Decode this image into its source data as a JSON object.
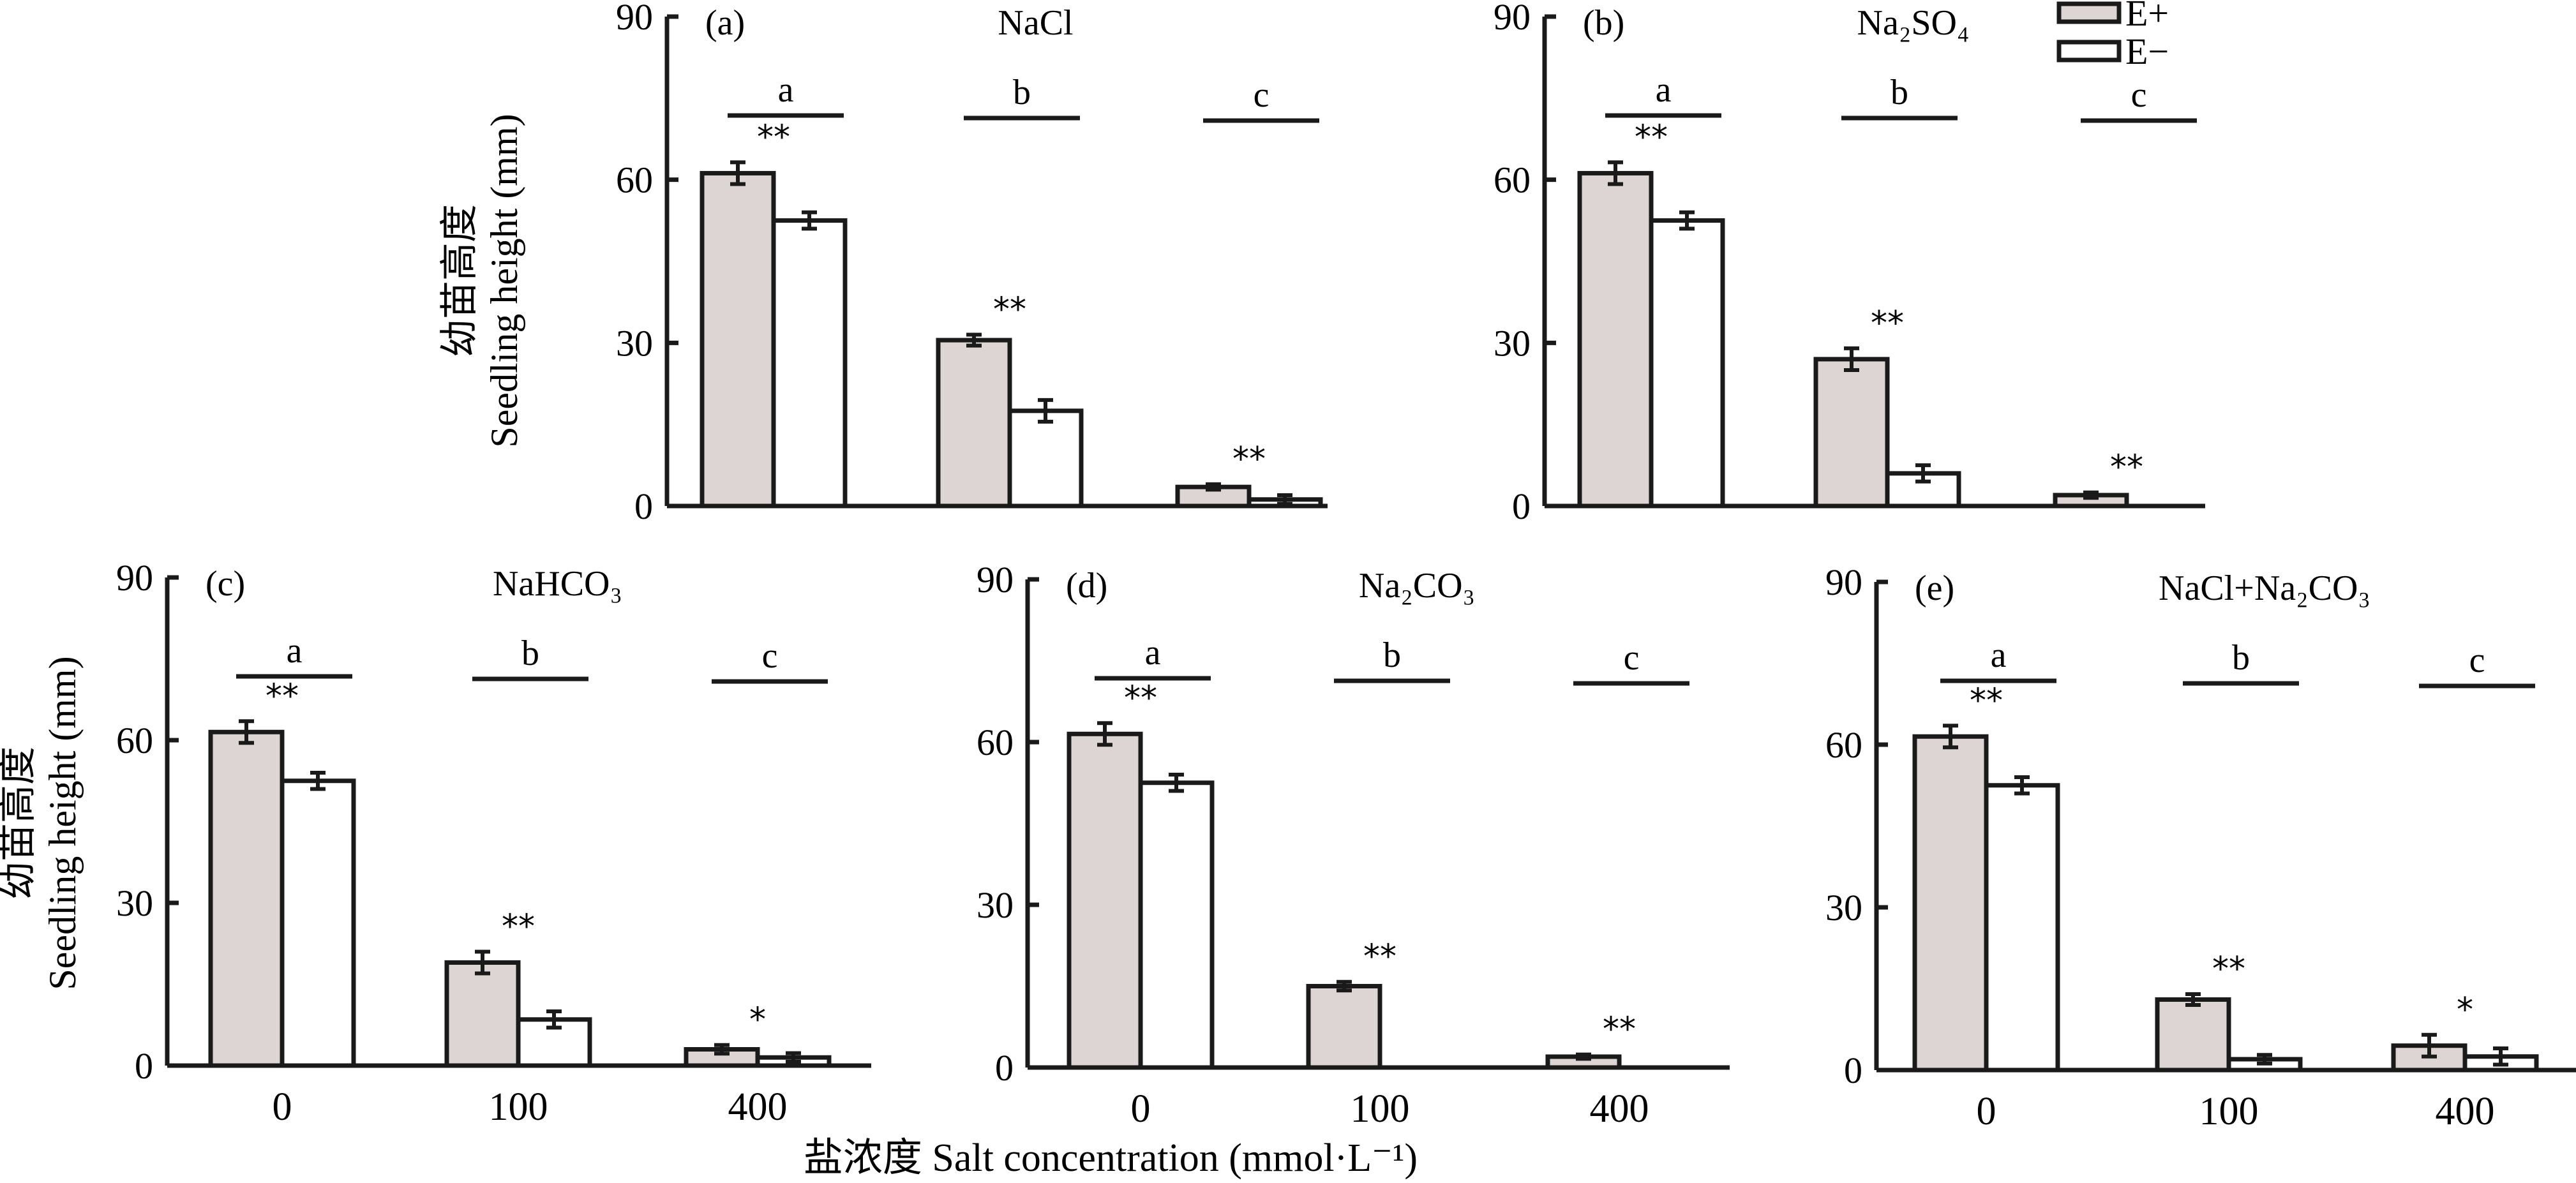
{
  "figure": {
    "ylabel_cn": "幼苗高度",
    "ylabel_en": "Seedling height (mm)",
    "xlabel": "盐浓度  Salt concentration (mmol·L⁻¹)",
    "legend": [
      {
        "label": "E+",
        "fill": "#dcd5d3"
      },
      {
        "label": "E−",
        "fill": "#ffffff"
      }
    ],
    "colors": {
      "eplus": "#dcd5d3",
      "eminus": "#ffffff",
      "stroke": "#1a1a1a"
    }
  },
  "chart_data": [
    {
      "type": "bar",
      "panel": "(a)",
      "title": "NaCl",
      "categories": [
        "0",
        "100",
        "400"
      ],
      "series": [
        {
          "name": "E+",
          "values": [
            61.2,
            30.5,
            3.5
          ],
          "errors": [
            2.0,
            1.0,
            0.5
          ]
        },
        {
          "name": "E−",
          "values": [
            52.5,
            17.5,
            1.2
          ],
          "errors": [
            1.5,
            2.0,
            0.8
          ]
        }
      ],
      "significance": [
        "**",
        "**",
        "**"
      ],
      "group_letters": [
        "a",
        "b",
        "c"
      ],
      "yticks": [
        0,
        30,
        60,
        90
      ],
      "ylim": [
        0,
        90
      ],
      "xlabel": "",
      "ylabel": "幼苗高度 Seedling height (mm)"
    },
    {
      "type": "bar",
      "panel": "(b)",
      "title": "Na₂SO₄",
      "categories": [
        "0",
        "100",
        "400"
      ],
      "series": [
        {
          "name": "E+",
          "values": [
            61.2,
            27.0,
            2.0
          ],
          "errors": [
            2.0,
            2.0,
            0.5
          ]
        },
        {
          "name": "E−",
          "values": [
            52.5,
            6.0,
            0
          ],
          "errors": [
            1.5,
            1.5,
            0
          ]
        }
      ],
      "significance": [
        "**",
        "**",
        "**"
      ],
      "group_letters": [
        "a",
        "b",
        "c"
      ],
      "yticks": [
        0,
        30,
        60,
        90
      ],
      "ylim": [
        0,
        90
      ],
      "xlabel": "",
      "ylabel": ""
    },
    {
      "type": "bar",
      "panel": "(c)",
      "title": "NaHCO₃",
      "categories": [
        "0",
        "100",
        "400"
      ],
      "series": [
        {
          "name": "E+",
          "values": [
            61.5,
            19.0,
            3.0
          ],
          "errors": [
            2.0,
            2.0,
            0.8
          ]
        },
        {
          "name": "E−",
          "values": [
            52.5,
            8.5,
            1.5
          ],
          "errors": [
            1.5,
            1.5,
            0.8
          ]
        }
      ],
      "significance": [
        "**",
        "**",
        "*"
      ],
      "group_letters": [
        "a",
        "b",
        "c"
      ],
      "yticks": [
        0,
        30,
        60,
        90
      ],
      "ylim": [
        0,
        90
      ],
      "xlabel": "",
      "ylabel": "幼苗高度 Seedling height (mm)"
    },
    {
      "type": "bar",
      "panel": "(d)",
      "title": "Na₂CO₃",
      "categories": [
        "0",
        "100",
        "400"
      ],
      "series": [
        {
          "name": "E+",
          "values": [
            61.5,
            15.0,
            2.0
          ],
          "errors": [
            2.0,
            0.8,
            0.4
          ]
        },
        {
          "name": "E−",
          "values": [
            52.5,
            0,
            0
          ],
          "errors": [
            1.5,
            0,
            0
          ]
        }
      ],
      "significance": [
        "**",
        "**",
        "**"
      ],
      "group_letters": [
        "a",
        "b",
        "c"
      ],
      "yticks": [
        0,
        30,
        60,
        90
      ],
      "ylim": [
        0,
        90
      ],
      "xlabel": "盐浓度  Salt concentration (mmol·L⁻¹)",
      "ylabel": ""
    },
    {
      "type": "bar",
      "panel": "(e)",
      "title": "NaCl+Na₂CO₃",
      "categories": [
        "0",
        "100",
        "400"
      ],
      "series": [
        {
          "name": "E+",
          "values": [
            61.5,
            13.0,
            4.5
          ],
          "errors": [
            2.0,
            1.0,
            2.0
          ]
        },
        {
          "name": "E−",
          "values": [
            52.5,
            2.0,
            2.5
          ],
          "errors": [
            1.5,
            0.8,
            1.5
          ]
        }
      ],
      "significance": [
        "**",
        "**",
        "*"
      ],
      "group_letters": [
        "a",
        "b",
        "c"
      ],
      "yticks": [
        0,
        30,
        60,
        90
      ],
      "ylim": [
        0,
        90
      ],
      "xlabel": "",
      "ylabel": ""
    }
  ]
}
